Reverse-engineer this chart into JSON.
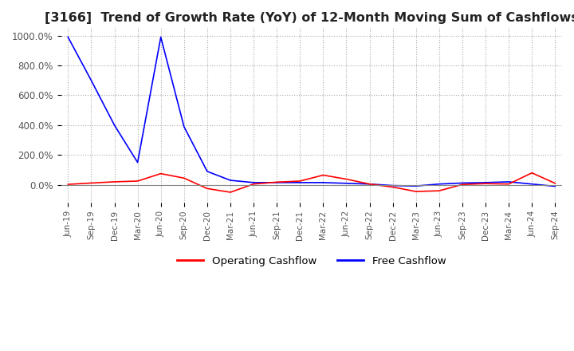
{
  "title": "[3166]  Trend of Growth Rate (YoY) of 12-Month Moving Sum of Cashflows",
  "title_fontsize": 11.5,
  "legend_labels": [
    "Operating Cashflow",
    "Free Cashflow"
  ],
  "legend_colors": [
    "#ff0000",
    "#0000ff"
  ],
  "ylim": [
    -120,
    1050
  ],
  "yticks": [
    0,
    200,
    400,
    600,
    800,
    1000
  ],
  "ytick_labels": [
    "0.0%",
    "200.0%",
    "400.0%",
    "600.0%",
    "800.0%",
    "1000.0%"
  ],
  "background_color": "#ffffff",
  "grid_color": "#aaaaaa",
  "tick_labels": [
    "Jun-19",
    "Sep-19",
    "Dec-19",
    "Mar-20",
    "Jun-20",
    "Sep-20",
    "Dec-20",
    "Mar-21",
    "Jun-21",
    "Sep-21",
    "Dec-21",
    "Mar-22",
    "Jun-22",
    "Sep-22",
    "Dec-22",
    "Mar-23",
    "Jun-23",
    "Sep-23",
    "Dec-23",
    "Mar-24",
    "Jun-24",
    "Sep-24"
  ],
  "operating_cashflow": [
    3,
    12,
    20,
    25,
    75,
    45,
    -25,
    -50,
    5,
    18,
    25,
    65,
    38,
    5,
    -15,
    -45,
    -40,
    2,
    8,
    5,
    80,
    10
  ],
  "free_cashflow": [
    990,
    700,
    400,
    150,
    990,
    390,
    90,
    30,
    15,
    15,
    15,
    15,
    10,
    5,
    -5,
    -8,
    5,
    12,
    15,
    20,
    5,
    -10
  ]
}
